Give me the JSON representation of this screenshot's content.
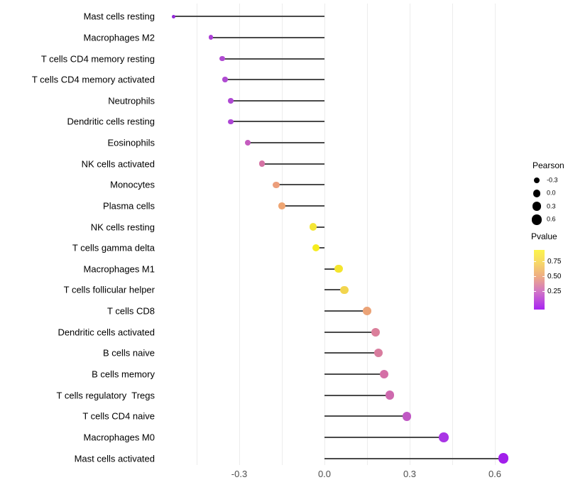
{
  "chart_data": {
    "type": "lollipop",
    "title": "",
    "xlabel": "",
    "ylabel": "",
    "xlim": [
      -0.58,
      0.72
    ],
    "grid": true,
    "legend_position": "right",
    "x_ticks": [
      {
        "label": "-0.3",
        "value": -0.3
      },
      {
        "label": "0.0",
        "value": 0.0
      },
      {
        "label": "0.3",
        "value": 0.3
      },
      {
        "label": "0.6",
        "value": 0.6
      }
    ],
    "minor_gridlines": [
      -0.45,
      -0.15,
      0.15,
      0.45
    ],
    "rows": [
      {
        "label": "Mast cells resting",
        "pearson": -0.53,
        "pvalue": 0.02,
        "color": "#9228D8"
      },
      {
        "label": "Macrophages M2",
        "pearson": -0.4,
        "pvalue": 0.1,
        "color": "#AC3FD6"
      },
      {
        "label": "T cells CD4 memory resting",
        "pearson": -0.36,
        "pvalue": 0.12,
        "color": "#B04BD2"
      },
      {
        "label": "T cells CD4 memory activated",
        "pearson": -0.35,
        "pvalue": 0.12,
        "color": "#B04BD2"
      },
      {
        "label": "Neutrophils",
        "pearson": -0.33,
        "pvalue": 0.12,
        "color": "#AF49D3"
      },
      {
        "label": "Dendritic cells resting",
        "pearson": -0.33,
        "pvalue": 0.13,
        "color": "#AD45D5"
      },
      {
        "label": "Eosinophils",
        "pearson": -0.27,
        "pvalue": 0.22,
        "color": "#C45BBE"
      },
      {
        "label": "NK cells activated",
        "pearson": -0.22,
        "pvalue": 0.32,
        "color": "#D572A4"
      },
      {
        "label": "Monocytes",
        "pearson": -0.17,
        "pvalue": 0.55,
        "color": "#EC9E7B"
      },
      {
        "label": "Plasma cells",
        "pearson": -0.15,
        "pvalue": 0.57,
        "color": "#EFA572"
      },
      {
        "label": "NK cells resting",
        "pearson": -0.04,
        "pvalue": 0.85,
        "color": "#F4E636"
      },
      {
        "label": "T cells gamma delta",
        "pearson": -0.03,
        "pvalue": 0.92,
        "color": "#F6EC1E"
      },
      {
        "label": "Macrophages M1",
        "pearson": 0.05,
        "pvalue": 0.86,
        "color": "#F4E52D"
      },
      {
        "label": "T cells follicular helper",
        "pearson": 0.07,
        "pvalue": 0.72,
        "color": "#F2D54E"
      },
      {
        "label": "T cells CD8",
        "pearson": 0.15,
        "pvalue": 0.58,
        "color": "#EBA377"
      },
      {
        "label": "Dendritic cells activated",
        "pearson": 0.18,
        "pvalue": 0.4,
        "color": "#DB7F9B"
      },
      {
        "label": "B cells naive",
        "pearson": 0.19,
        "pvalue": 0.38,
        "color": "#D87C9E"
      },
      {
        "label": "B cells memory",
        "pearson": 0.21,
        "pvalue": 0.34,
        "color": "#D46FA6"
      },
      {
        "label": "T cells regulatory  Tregs",
        "pearson": 0.23,
        "pvalue": 0.3,
        "color": "#CE69AE"
      },
      {
        "label": "T cells CD4 naive",
        "pearson": 0.29,
        "pvalue": 0.22,
        "color": "#C058C4"
      },
      {
        "label": "Macrophages M0",
        "pearson": 0.42,
        "pvalue": 0.08,
        "color": "#A935E5"
      },
      {
        "label": "Mast cells activated",
        "pearson": 0.63,
        "pvalue": 0.03,
        "color": "#A21FEB"
      }
    ],
    "legend_size": {
      "title": "Pearson",
      "items": [
        {
          "label": "-0.3",
          "value": -0.3
        },
        {
          "label": "0.0",
          "value": 0.0
        },
        {
          "label": "0.3",
          "value": 0.3
        },
        {
          "label": "0.6",
          "value": 0.6
        }
      ]
    },
    "legend_color": {
      "title": "Pvalue",
      "tick_labels": [
        "0.75",
        "0.50",
        "0.25"
      ],
      "gradient_top_to_bottom": [
        "#FCF44C",
        "#F7DA65",
        "#EEAB85",
        "#D175C6",
        "#A824F2"
      ]
    }
  },
  "styles": {
    "stem_color": "#4A4A4A",
    "gridline_color": "#ECECEC",
    "axis_text_color": "#4D4D4D",
    "label_color": "#000000",
    "legend_dot_color": "#000000"
  }
}
